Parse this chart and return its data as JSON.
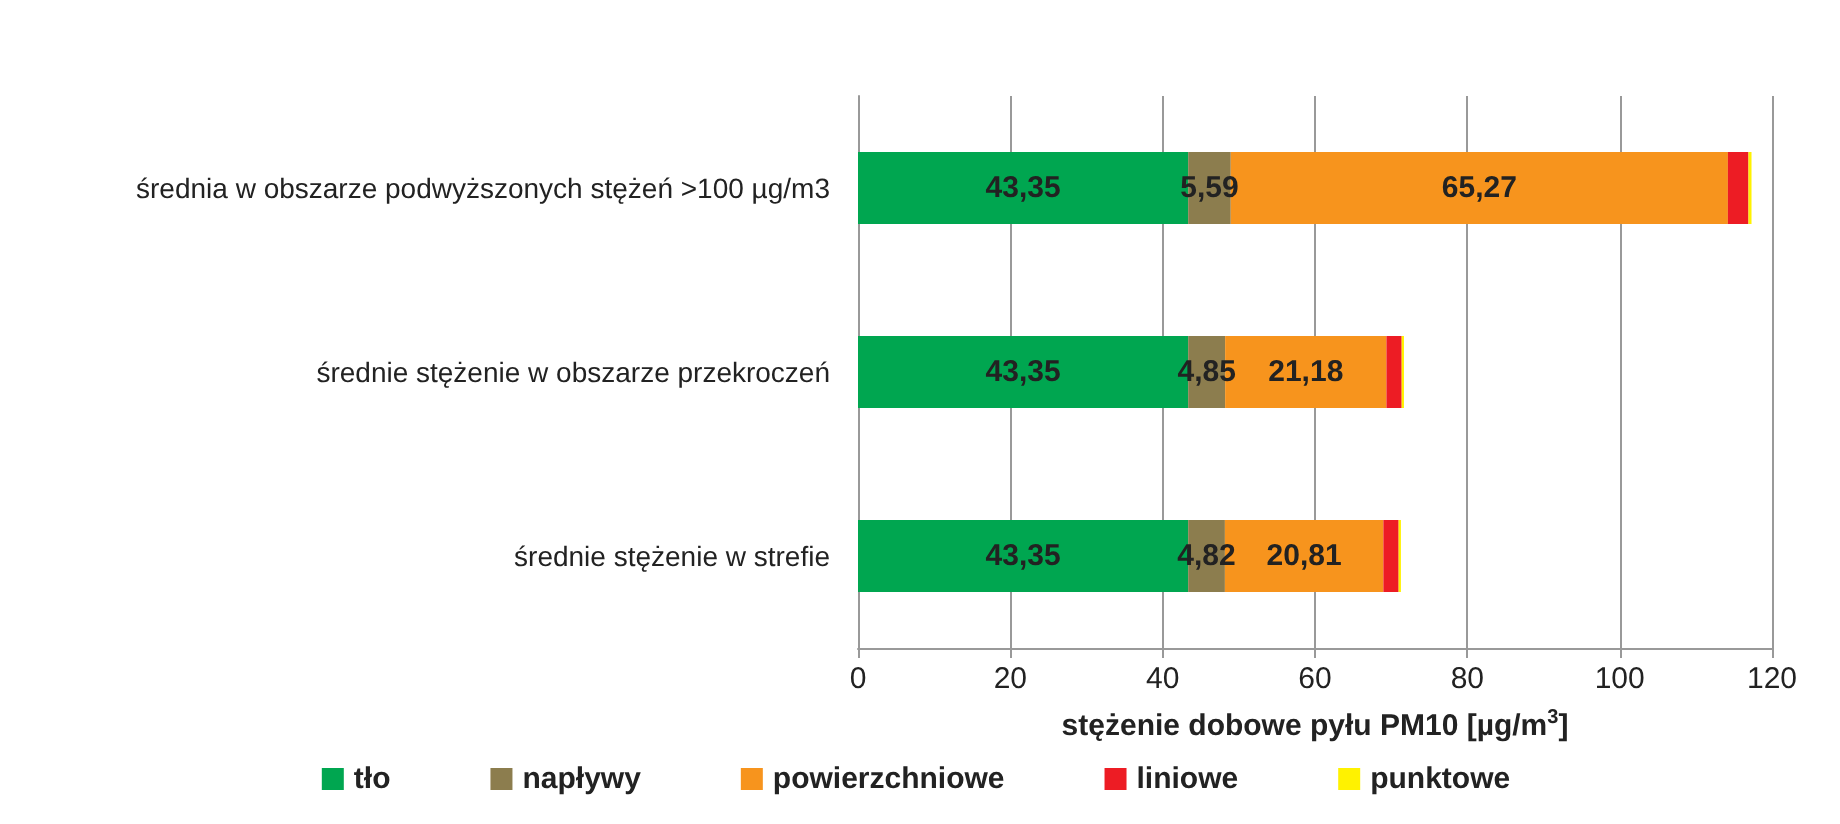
{
  "chart_data": {
    "type": "bar",
    "orientation": "horizontal",
    "stacked": true,
    "xlabel": "stężenie dobowe pyłu PM10 [µg/m$^{3}$]",
    "categories": [
      "średnia w obszarze podwyższonych stężeń >100 µg/m3",
      "średnie stężenie w obszarze przekroczeń",
      "średnie stężenie w strefie"
    ],
    "series": [
      {
        "name": "tło",
        "color": "#00a650",
        "values": [
          43.35,
          43.35,
          43.35
        ],
        "value_labels": [
          "43,35",
          "43,35",
          "43,35"
        ]
      },
      {
        "name": "napływy",
        "color": "#8c7d4e",
        "values": [
          5.59,
          4.85,
          4.82
        ],
        "value_labels": [
          "5,59",
          "4,85",
          "4,82"
        ]
      },
      {
        "name": "powierzchniowe",
        "color": "#f7941d",
        "values": [
          65.27,
          21.18,
          20.81
        ],
        "value_labels": [
          "65,27",
          "21,18",
          "20,81"
        ]
      },
      {
        "name": "liniowe",
        "color": "#ed1c24",
        "values": [
          2.7,
          2.0,
          2.0
        ]
      },
      {
        "name": "punktowe",
        "color": "#fff200",
        "values": [
          0.4,
          0.3,
          0.3
        ]
      }
    ],
    "xlim": [
      0,
      120
    ],
    "xticks": [
      0,
      20,
      40,
      60,
      80,
      100,
      120
    ],
    "grid": "x",
    "legend": "bottom"
  }
}
